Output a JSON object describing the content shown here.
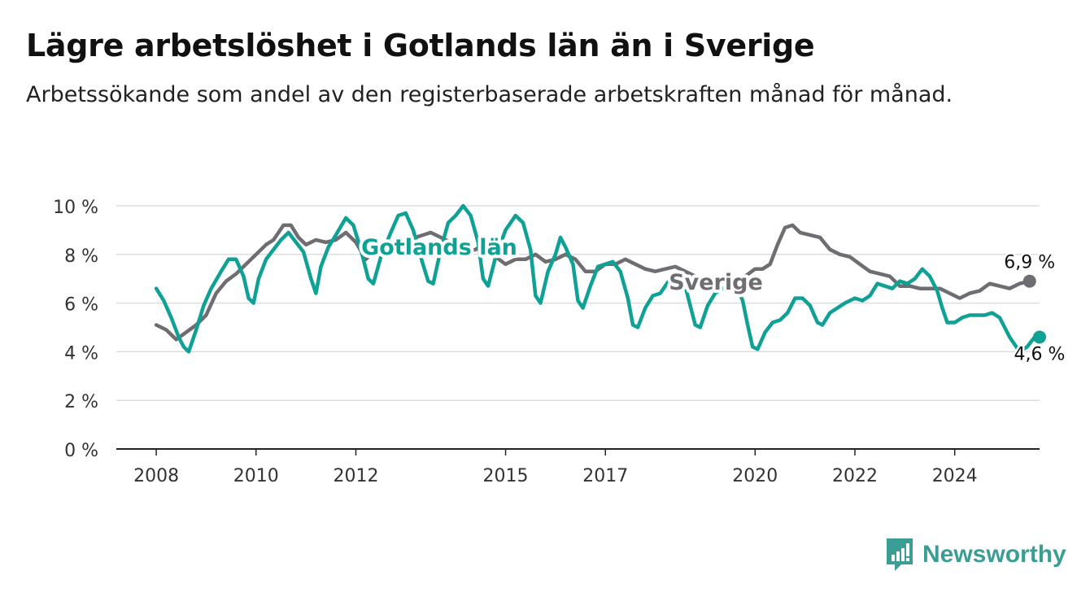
{
  "title": "Lägre arbetslöshet i Gotlands län än i Sverige",
  "subtitle": "Arbetssökande som andel av den registerbaserade arbetskraften månad för månad.",
  "brand": {
    "name": "Newsworthy",
    "icon": "newsworthy-logo-icon"
  },
  "colors": {
    "gotland": "#0fa195",
    "sverige": "#6f6d72",
    "grid": "#dddddd",
    "axis": "#222222"
  },
  "chart_data": {
    "type": "line",
    "y_ticks": [
      "0 %",
      "2 %",
      "4 %",
      "6 %",
      "8 %",
      "10 %"
    ],
    "y_tick_values": [
      0,
      2,
      4,
      6,
      8,
      10
    ],
    "ylim": [
      0,
      10
    ],
    "x_tick_labels": [
      "2008",
      "2010",
      "2012",
      "2015",
      "2017",
      "2020",
      "2022",
      "2024"
    ],
    "x_tick_values": [
      2008,
      2010,
      2012,
      2015,
      2017,
      2020,
      2022,
      2024
    ],
    "xlim": [
      2007.2,
      2025.7
    ],
    "grid": true,
    "series": [
      {
        "name": "Sverige",
        "end_label": "6,9 %",
        "points": [
          [
            2008.0,
            5.1
          ],
          [
            2008.2,
            4.9
          ],
          [
            2008.4,
            4.5
          ],
          [
            2008.6,
            4.8
          ],
          [
            2008.8,
            5.1
          ],
          [
            2009.0,
            5.5
          ],
          [
            2009.2,
            6.4
          ],
          [
            2009.4,
            6.9
          ],
          [
            2009.6,
            7.2
          ],
          [
            2009.8,
            7.6
          ],
          [
            2010.0,
            8.0
          ],
          [
            2010.2,
            8.4
          ],
          [
            2010.35,
            8.6
          ],
          [
            2010.45,
            8.9
          ],
          [
            2010.55,
            9.2
          ],
          [
            2010.7,
            9.2
          ],
          [
            2010.85,
            8.7
          ],
          [
            2011.0,
            8.4
          ],
          [
            2011.2,
            8.6
          ],
          [
            2011.4,
            8.5
          ],
          [
            2011.6,
            8.6
          ],
          [
            2011.8,
            8.9
          ],
          [
            2012.0,
            8.5
          ],
          [
            2012.2,
            7.8
          ],
          [
            2012.4,
            8.2
          ],
          [
            2012.6,
            8.3
          ],
          [
            2012.8,
            8.2
          ],
          [
            2013.0,
            8.7
          ],
          [
            2013.2,
            8.7
          ],
          [
            2013.5,
            8.9
          ],
          [
            2013.8,
            8.6
          ],
          [
            2014.0,
            8.4
          ],
          [
            2014.2,
            8.1
          ],
          [
            2014.4,
            8.2
          ],
          [
            2014.6,
            8.5
          ],
          [
            2014.8,
            7.9
          ],
          [
            2015.0,
            7.6
          ],
          [
            2015.2,
            7.8
          ],
          [
            2015.4,
            7.8
          ],
          [
            2015.6,
            8.0
          ],
          [
            2015.8,
            7.7
          ],
          [
            2016.0,
            7.8
          ],
          [
            2016.2,
            8.0
          ],
          [
            2016.4,
            7.8
          ],
          [
            2016.6,
            7.3
          ],
          [
            2016.8,
            7.3
          ],
          [
            2017.0,
            7.6
          ],
          [
            2017.2,
            7.6
          ],
          [
            2017.4,
            7.8
          ],
          [
            2017.6,
            7.6
          ],
          [
            2017.8,
            7.4
          ],
          [
            2018.0,
            7.3
          ],
          [
            2018.2,
            7.4
          ],
          [
            2018.4,
            7.5
          ],
          [
            2018.6,
            7.3
          ],
          [
            2018.8,
            7.1
          ],
          [
            2019.0,
            7.0
          ],
          [
            2019.2,
            6.8
          ],
          [
            2019.4,
            6.9
          ],
          [
            2019.6,
            6.9
          ],
          [
            2019.8,
            7.1
          ],
          [
            2020.0,
            7.4
          ],
          [
            2020.15,
            7.4
          ],
          [
            2020.3,
            7.6
          ],
          [
            2020.45,
            8.4
          ],
          [
            2020.6,
            9.1
          ],
          [
            2020.75,
            9.2
          ],
          [
            2020.9,
            8.9
          ],
          [
            2021.1,
            8.8
          ],
          [
            2021.3,
            8.7
          ],
          [
            2021.5,
            8.2
          ],
          [
            2021.7,
            8.0
          ],
          [
            2021.9,
            7.9
          ],
          [
            2022.1,
            7.6
          ],
          [
            2022.3,
            7.3
          ],
          [
            2022.5,
            7.2
          ],
          [
            2022.7,
            7.1
          ],
          [
            2022.9,
            6.7
          ],
          [
            2023.1,
            6.7
          ],
          [
            2023.3,
            6.6
          ],
          [
            2023.5,
            6.6
          ],
          [
            2023.7,
            6.6
          ],
          [
            2023.9,
            6.4
          ],
          [
            2024.1,
            6.2
          ],
          [
            2024.3,
            6.4
          ],
          [
            2024.5,
            6.5
          ],
          [
            2024.7,
            6.8
          ],
          [
            2024.9,
            6.7
          ],
          [
            2025.1,
            6.6
          ],
          [
            2025.3,
            6.8
          ],
          [
            2025.5,
            6.9
          ]
        ]
      },
      {
        "name": "Gotlands län",
        "end_label": "4,6 %",
        "points": [
          [
            2008.0,
            6.6
          ],
          [
            2008.15,
            6.1
          ],
          [
            2008.3,
            5.4
          ],
          [
            2008.45,
            4.6
          ],
          [
            2008.55,
            4.2
          ],
          [
            2008.65,
            4.0
          ],
          [
            2008.8,
            4.9
          ],
          [
            2008.95,
            5.9
          ],
          [
            2009.1,
            6.6
          ],
          [
            2009.3,
            7.3
          ],
          [
            2009.45,
            7.8
          ],
          [
            2009.6,
            7.8
          ],
          [
            2009.75,
            7.1
          ],
          [
            2009.85,
            6.2
          ],
          [
            2009.95,
            6.0
          ],
          [
            2010.05,
            7.0
          ],
          [
            2010.2,
            7.8
          ],
          [
            2010.35,
            8.2
          ],
          [
            2010.5,
            8.6
          ],
          [
            2010.65,
            8.9
          ],
          [
            2010.8,
            8.5
          ],
          [
            2010.95,
            8.1
          ],
          [
            2011.1,
            7.0
          ],
          [
            2011.2,
            6.4
          ],
          [
            2011.3,
            7.5
          ],
          [
            2011.45,
            8.3
          ],
          [
            2011.6,
            8.8
          ],
          [
            2011.8,
            9.5
          ],
          [
            2011.95,
            9.2
          ],
          [
            2012.1,
            8.2
          ],
          [
            2012.25,
            7.0
          ],
          [
            2012.35,
            6.8
          ],
          [
            2012.5,
            7.9
          ],
          [
            2012.7,
            8.9
          ],
          [
            2012.85,
            9.6
          ],
          [
            2013.0,
            9.7
          ],
          [
            2013.15,
            9.0
          ],
          [
            2013.3,
            7.9
          ],
          [
            2013.45,
            6.9
          ],
          [
            2013.55,
            6.8
          ],
          [
            2013.7,
            8.2
          ],
          [
            2013.85,
            9.3
          ],
          [
            2014.0,
            9.6
          ],
          [
            2014.15,
            10.0
          ],
          [
            2014.3,
            9.6
          ],
          [
            2014.45,
            8.5
          ],
          [
            2014.55,
            7.0
          ],
          [
            2014.65,
            6.7
          ],
          [
            2014.8,
            7.9
          ],
          [
            2015.0,
            9.0
          ],
          [
            2015.2,
            9.6
          ],
          [
            2015.35,
            9.3
          ],
          [
            2015.5,
            8.2
          ],
          [
            2015.6,
            6.3
          ],
          [
            2015.7,
            6.0
          ],
          [
            2015.85,
            7.3
          ],
          [
            2016.0,
            8.0
          ],
          [
            2016.1,
            8.7
          ],
          [
            2016.2,
            8.3
          ],
          [
            2016.35,
            7.6
          ],
          [
            2016.45,
            6.1
          ],
          [
            2016.55,
            5.8
          ],
          [
            2016.7,
            6.7
          ],
          [
            2016.85,
            7.5
          ],
          [
            2017.0,
            7.6
          ],
          [
            2017.15,
            7.7
          ],
          [
            2017.3,
            7.3
          ],
          [
            2017.45,
            6.2
          ],
          [
            2017.55,
            5.1
          ],
          [
            2017.65,
            5.0
          ],
          [
            2017.8,
            5.8
          ],
          [
            2017.95,
            6.3
          ],
          [
            2018.1,
            6.4
          ],
          [
            2018.3,
            7.0
          ],
          [
            2018.45,
            7.0
          ],
          [
            2018.6,
            6.7
          ],
          [
            2018.7,
            5.9
          ],
          [
            2018.8,
            5.1
          ],
          [
            2018.9,
            5.0
          ],
          [
            2019.05,
            5.9
          ],
          [
            2019.2,
            6.4
          ],
          [
            2019.35,
            6.6
          ],
          [
            2019.5,
            6.7
          ],
          [
            2019.65,
            6.6
          ],
          [
            2019.75,
            6.1
          ],
          [
            2019.85,
            5.1
          ],
          [
            2019.95,
            4.2
          ],
          [
            2020.05,
            4.1
          ],
          [
            2020.2,
            4.8
          ],
          [
            2020.35,
            5.2
          ],
          [
            2020.5,
            5.3
          ],
          [
            2020.65,
            5.6
          ],
          [
            2020.8,
            6.2
          ],
          [
            2020.95,
            6.2
          ],
          [
            2021.1,
            5.9
          ],
          [
            2021.25,
            5.2
          ],
          [
            2021.35,
            5.1
          ],
          [
            2021.5,
            5.6
          ],
          [
            2021.65,
            5.8
          ],
          [
            2021.8,
            6.0
          ],
          [
            2022.0,
            6.2
          ],
          [
            2022.15,
            6.1
          ],
          [
            2022.3,
            6.3
          ],
          [
            2022.45,
            6.8
          ],
          [
            2022.6,
            6.7
          ],
          [
            2022.75,
            6.6
          ],
          [
            2022.9,
            6.9
          ],
          [
            2023.05,
            6.8
          ],
          [
            2023.2,
            7.0
          ],
          [
            2023.35,
            7.4
          ],
          [
            2023.5,
            7.1
          ],
          [
            2023.65,
            6.5
          ],
          [
            2023.75,
            5.8
          ],
          [
            2023.85,
            5.2
          ],
          [
            2024.0,
            5.2
          ],
          [
            2024.15,
            5.4
          ],
          [
            2024.3,
            5.5
          ],
          [
            2024.45,
            5.5
          ],
          [
            2024.6,
            5.5
          ],
          [
            2024.75,
            5.6
          ],
          [
            2024.9,
            5.4
          ],
          [
            2025.0,
            5.0
          ],
          [
            2025.1,
            4.6
          ],
          [
            2025.2,
            4.3
          ],
          [
            2025.3,
            4.0
          ],
          [
            2025.45,
            4.2
          ],
          [
            2025.6,
            4.6
          ],
          [
            2025.7,
            4.6
          ]
        ]
      }
    ],
    "annotations": [
      {
        "text": "Gotlands län",
        "series": "Gotlands län"
      },
      {
        "text": "Sverige",
        "series": "Sverige"
      }
    ]
  }
}
